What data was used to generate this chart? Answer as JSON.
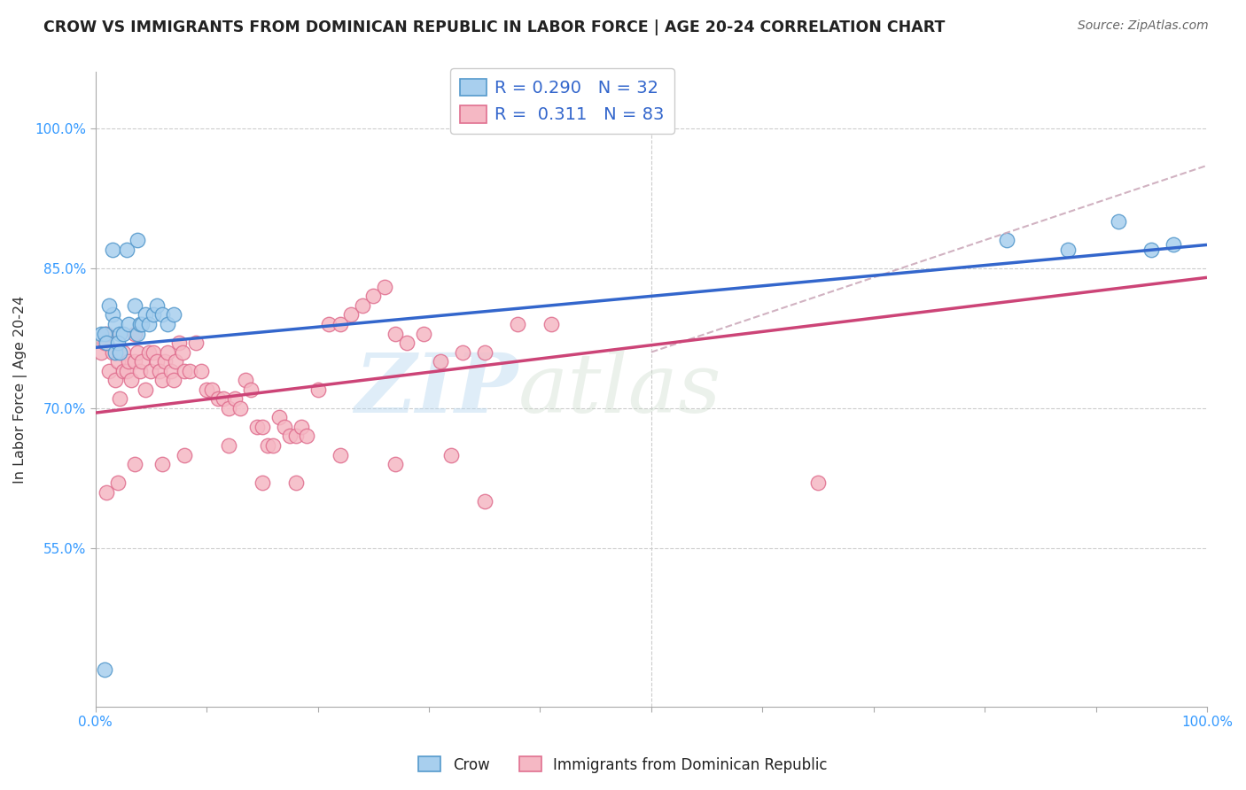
{
  "title": "CROW VS IMMIGRANTS FROM DOMINICAN REPUBLIC IN LABOR FORCE | AGE 20-24 CORRELATION CHART",
  "source": "Source: ZipAtlas.com",
  "ylabel": "In Labor Force | Age 20-24",
  "watermark_left": "ZIP",
  "watermark_right": "atlas",
  "legend_crow_r": "R = 0.290",
  "legend_crow_n": "N = 32",
  "legend_dr_r": "R =  0.311",
  "legend_dr_n": "N = 83",
  "crow_fill": "#A8CFEE",
  "crow_edge": "#5599CC",
  "pink_fill": "#F5B8C4",
  "pink_edge": "#E07090",
  "blue_line_color": "#3366CC",
  "pink_line_color": "#CC4477",
  "gray_dash_color": "#CCAABB",
  "xlim": [
    0.0,
    1.0
  ],
  "ylim": [
    0.38,
    1.06
  ],
  "ytick_positions": [
    0.55,
    0.7,
    0.85,
    1.0
  ],
  "ytick_labels": [
    "55.0%",
    "70.0%",
    "85.0%",
    "100.0%"
  ],
  "xtick_positions": [
    0.0,
    0.1,
    0.2,
    0.3,
    0.4,
    0.5,
    0.6,
    0.7,
    0.8,
    0.9,
    1.0
  ],
  "xtick_edge_labels": {
    "0": "0.0%",
    "10": "100.0%"
  },
  "blue_line_y0": 0.765,
  "blue_line_y1": 0.875,
  "pink_line_y0": 0.695,
  "pink_line_y1": 0.84,
  "gray_line_y0": 0.76,
  "gray_line_y1": 0.96,
  "crow_x": [
    0.005,
    0.015,
    0.028,
    0.038,
    0.008,
    0.01,
    0.015,
    0.012,
    0.018,
    0.022,
    0.018,
    0.02,
    0.022,
    0.025,
    0.03,
    0.035,
    0.038,
    0.04,
    0.042,
    0.045,
    0.048,
    0.052,
    0.055,
    0.06,
    0.065,
    0.07,
    0.008,
    0.82,
    0.875,
    0.92,
    0.95,
    0.97
  ],
  "crow_y": [
    0.78,
    0.87,
    0.87,
    0.88,
    0.78,
    0.77,
    0.8,
    0.81,
    0.79,
    0.78,
    0.76,
    0.77,
    0.76,
    0.78,
    0.79,
    0.81,
    0.78,
    0.79,
    0.79,
    0.8,
    0.79,
    0.8,
    0.81,
    0.8,
    0.79,
    0.8,
    0.42,
    0.88,
    0.87,
    0.9,
    0.87,
    0.875
  ],
  "dr_x": [
    0.005,
    0.008,
    0.01,
    0.012,
    0.015,
    0.018,
    0.02,
    0.022,
    0.025,
    0.025,
    0.028,
    0.03,
    0.032,
    0.035,
    0.035,
    0.038,
    0.04,
    0.042,
    0.045,
    0.048,
    0.05,
    0.052,
    0.055,
    0.058,
    0.06,
    0.062,
    0.065,
    0.068,
    0.07,
    0.072,
    0.075,
    0.078,
    0.08,
    0.085,
    0.09,
    0.095,
    0.1,
    0.105,
    0.11,
    0.115,
    0.12,
    0.125,
    0.13,
    0.135,
    0.14,
    0.145,
    0.15,
    0.155,
    0.16,
    0.165,
    0.17,
    0.175,
    0.18,
    0.185,
    0.19,
    0.2,
    0.21,
    0.22,
    0.23,
    0.24,
    0.25,
    0.26,
    0.27,
    0.28,
    0.295,
    0.31,
    0.33,
    0.35,
    0.38,
    0.41,
    0.01,
    0.02,
    0.035,
    0.06,
    0.08,
    0.12,
    0.15,
    0.18,
    0.22,
    0.27,
    0.32,
    0.35,
    0.65
  ],
  "dr_y": [
    0.76,
    0.77,
    0.78,
    0.74,
    0.76,
    0.73,
    0.75,
    0.71,
    0.74,
    0.76,
    0.74,
    0.75,
    0.73,
    0.75,
    0.78,
    0.76,
    0.74,
    0.75,
    0.72,
    0.76,
    0.74,
    0.76,
    0.75,
    0.74,
    0.73,
    0.75,
    0.76,
    0.74,
    0.73,
    0.75,
    0.77,
    0.76,
    0.74,
    0.74,
    0.77,
    0.74,
    0.72,
    0.72,
    0.71,
    0.71,
    0.7,
    0.71,
    0.7,
    0.73,
    0.72,
    0.68,
    0.68,
    0.66,
    0.66,
    0.69,
    0.68,
    0.67,
    0.67,
    0.68,
    0.67,
    0.72,
    0.79,
    0.79,
    0.8,
    0.81,
    0.82,
    0.83,
    0.78,
    0.77,
    0.78,
    0.75,
    0.76,
    0.76,
    0.79,
    0.79,
    0.61,
    0.62,
    0.64,
    0.64,
    0.65,
    0.66,
    0.62,
    0.62,
    0.65,
    0.64,
    0.65,
    0.6,
    0.62
  ]
}
